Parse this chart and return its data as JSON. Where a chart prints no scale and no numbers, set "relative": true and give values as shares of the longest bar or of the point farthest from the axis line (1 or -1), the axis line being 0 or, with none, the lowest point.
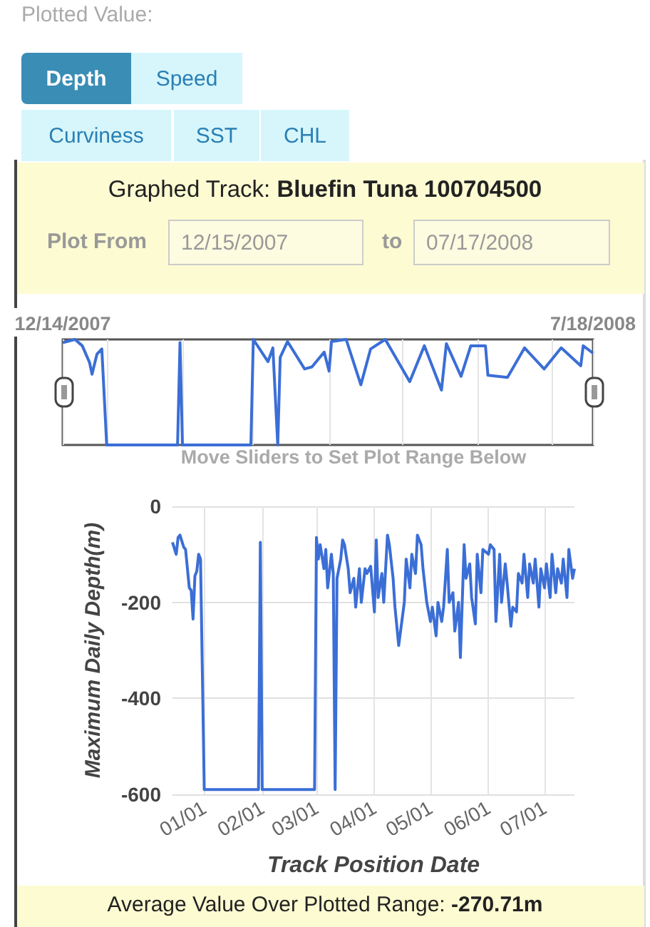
{
  "chart_data": [
    {
      "type": "other",
      "annotations": [
        "Plotted Value:",
        "Depth",
        "Speed",
        "Curviness",
        "SST",
        "CHL",
        "Graphed Track:",
        "Bluefin Tuna 100704500",
        "Plot From",
        "12/15/2007",
        "to",
        "07/17/2008"
      ]
    },
    {
      "type": "line",
      "relative": true,
      "color": "#3b6ed6",
      "grid": "x",
      "annotations": [
        "Move Sliders to Set Plot Range Below"
      ],
      "xlim": [
        "2007-12-14",
        "2008-07-18"
      ],
      "xticks": [
        {
          "value": "2007-12-14",
          "label": "12/14/2007"
        },
        {
          "value": "2008-01-01",
          "label": null
        },
        {
          "value": "2008-02-01",
          "label": null
        },
        {
          "value": "2008-03-01",
          "label": null
        },
        {
          "value": "2008-04-01",
          "label": null
        },
        {
          "value": "2008-05-01",
          "label": null
        },
        {
          "value": "2008-06-01",
          "label": null
        },
        {
          "value": "2008-07-01",
          "label": null
        },
        {
          "value": "2008-07-18",
          "label": "7/18/2008"
        }
      ],
      "x": [
        "2007-12-14",
        "2007-12-19",
        "2007-12-22",
        "2007-12-25",
        "2007-12-26",
        "2007-12-28",
        "2007-12-30",
        "2008-01-01",
        "2008-01-30",
        "2008-01-31",
        "2008-02-01",
        "2008-02-29",
        "2008-03-01",
        "2008-03-07",
        "2008-03-09",
        "2008-03-11",
        "2008-03-12",
        "2008-03-15",
        "2008-03-22",
        "2008-03-25",
        "2008-03-30",
        "2008-04-01",
        "2008-04-02",
        "2008-04-08",
        "2008-04-14",
        "2008-04-18",
        "2008-04-24",
        "2008-05-04",
        "2008-05-10",
        "2008-05-17",
        "2008-05-19",
        "2008-05-25",
        "2008-05-29",
        "2008-06-04",
        "2008-06-05",
        "2008-06-13",
        "2008-06-20",
        "2008-06-28",
        "2008-07-05",
        "2008-07-13",
        "2008-07-14",
        "2008-07-18"
      ],
      "values": [
        0.97,
        1.0,
        0.94,
        0.78,
        0.67,
        0.86,
        0.91,
        0,
        0,
        0.97,
        0,
        0,
        1.0,
        0.79,
        0.92,
        0,
        0.83,
        0.98,
        0.72,
        0.74,
        0.88,
        0.7,
        0.98,
        1.0,
        0.57,
        0.91,
        1.0,
        0.6,
        0.94,
        0.52,
        0.96,
        0.65,
        0.94,
        0.94,
        0.66,
        0.64,
        0.92,
        0.72,
        0.92,
        0.75,
        0.94,
        0.87
      ]
    },
    {
      "type": "line",
      "color": "#3b6ed6",
      "grid": true,
      "xlabel": "Track Position Date",
      "ylabel": "Maximum Daily Depth(m)",
      "annotations": [
        "Average Value Over Plotted Range:",
        "-270.71m"
      ],
      "xlim": [
        "2007-12-15",
        "2008-07-17"
      ],
      "xticks": [
        {
          "value": "2008-01-01",
          "label": "01/01"
        },
        {
          "value": "2008-02-01",
          "label": "02/01"
        },
        {
          "value": "2008-03-01",
          "label": "03/01"
        },
        {
          "value": "2008-04-01",
          "label": "04/01"
        },
        {
          "value": "2008-05-01",
          "label": "05/01"
        },
        {
          "value": "2008-06-01",
          "label": "06/01"
        },
        {
          "value": "2008-07-01",
          "label": "07/01"
        }
      ],
      "ylim": [
        -600,
        0
      ],
      "yticks": [
        0,
        -200,
        -400,
        -600
      ],
      "x": [
        "2007-12-15",
        "2007-12-17",
        "2007-12-18",
        "2007-12-19",
        "2007-12-21",
        "2007-12-22",
        "2007-12-24",
        "2007-12-25",
        "2007-12-26",
        "2007-12-27",
        "2007-12-28",
        "2007-12-29",
        "2007-12-30",
        "2008-01-01",
        "2008-01-30",
        "2008-01-31",
        "2008-02-01",
        "2008-02-29",
        "2008-03-01",
        "2008-03-02",
        "2008-03-03",
        "2008-03-05",
        "2008-03-06",
        "2008-03-07",
        "2008-03-09",
        "2008-03-10",
        "2008-03-11",
        "2008-03-12",
        "2008-03-14",
        "2008-03-15",
        "2008-03-16",
        "2008-03-18",
        "2008-03-19",
        "2008-03-21",
        "2008-03-22",
        "2008-03-24",
        "2008-03-25",
        "2008-03-27",
        "2008-03-28",
        "2008-03-30",
        "2008-04-01",
        "2008-04-02",
        "2008-04-03",
        "2008-04-05",
        "2008-04-06",
        "2008-04-08",
        "2008-04-09",
        "2008-04-11",
        "2008-04-12",
        "2008-04-14",
        "2008-04-15",
        "2008-04-17",
        "2008-04-18",
        "2008-04-20",
        "2008-04-21",
        "2008-04-23",
        "2008-04-24",
        "2008-04-26",
        "2008-04-27",
        "2008-04-29",
        "2008-05-01",
        "2008-05-02",
        "2008-05-04",
        "2008-05-05",
        "2008-05-07",
        "2008-05-08",
        "2008-05-10",
        "2008-05-11",
        "2008-05-13",
        "2008-05-14",
        "2008-05-16",
        "2008-05-17",
        "2008-05-19",
        "2008-05-20",
        "2008-05-22",
        "2008-05-23",
        "2008-05-25",
        "2008-05-26",
        "2008-05-28",
        "2008-05-29",
        "2008-06-01",
        "2008-06-02",
        "2008-06-04",
        "2008-06-05",
        "2008-06-07",
        "2008-06-08",
        "2008-06-10",
        "2008-06-11",
        "2008-06-13",
        "2008-06-14",
        "2008-06-16",
        "2008-06-17",
        "2008-06-19",
        "2008-06-20",
        "2008-06-22",
        "2008-06-23",
        "2008-06-25",
        "2008-06-26",
        "2008-06-28",
        "2008-06-29",
        "2008-07-01",
        "2008-07-02",
        "2008-07-04",
        "2008-07-05",
        "2008-07-07",
        "2008-07-08",
        "2008-07-10",
        "2008-07-11",
        "2008-07-13",
        "2008-07-14",
        "2008-07-16",
        "2008-07-17"
      ],
      "values": [
        -75,
        -100,
        -65,
        -60,
        -85,
        -90,
        -170,
        -175,
        -235,
        -145,
        -135,
        -100,
        -110,
        -590,
        -590,
        -75,
        -590,
        -590,
        -65,
        -110,
        -80,
        -130,
        -90,
        -170,
        -100,
        -140,
        -590,
        -150,
        -110,
        -70,
        -80,
        -130,
        -180,
        -150,
        -210,
        -130,
        -200,
        -130,
        -140,
        -125,
        -220,
        -70,
        -190,
        -140,
        -200,
        -60,
        -80,
        -150,
        -210,
        -290,
        -260,
        -200,
        -110,
        -170,
        -100,
        -140,
        -60,
        -80,
        -130,
        -200,
        -240,
        -210,
        -270,
        -200,
        -240,
        -210,
        -90,
        -200,
        -180,
        -260,
        -200,
        -315,
        -80,
        -150,
        -120,
        -190,
        -245,
        -100,
        -180,
        -90,
        -100,
        -80,
        -90,
        -240,
        -100,
        -200,
        -120,
        -160,
        -250,
        -210,
        -220,
        -140,
        -160,
        -100,
        -190,
        -120,
        -160,
        -110,
        -210,
        -130,
        -170,
        -120,
        -190,
        -100,
        -180,
        -130,
        -160,
        -110,
        -190,
        -90,
        -150,
        -130
      ]
    }
  ]
}
